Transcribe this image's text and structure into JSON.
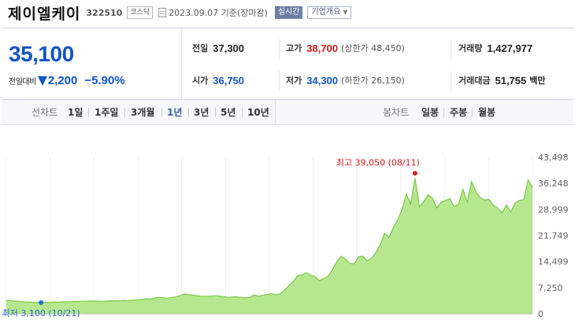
{
  "header": {
    "stock_name": "제이엘케이",
    "stock_code": "322510",
    "market": "코스닥",
    "base_date": "2023.09.07 기준(장마감)",
    "realtime_label": "실시간",
    "company_info_label": "기업개요"
  },
  "summary": {
    "current_price": "35,100",
    "change_label": "전일대비",
    "change_value": "2,200",
    "change_rate": "−5.90%",
    "prev_close_label": "전일",
    "prev_close": "37,300",
    "high_label": "고가",
    "high": "38,700",
    "upper_limit": "(상한가 48,450)",
    "volume_label": "거래량",
    "volume": "1,427,977",
    "open_label": "시가",
    "open": "36,750",
    "low_label": "저가",
    "low": "34,300",
    "lower_limit": "(하한가 26,150)",
    "amount_label": "거래대금",
    "amount": "51,755",
    "amount_unit": "백만"
  },
  "period_bar": {
    "line_label": "선차트",
    "line_options": [
      "1일",
      "1주일",
      "3개월",
      "1년",
      "3년",
      "5년",
      "10년"
    ],
    "active": "1년",
    "candle_label": "봉차트",
    "candle_options": [
      "일봉",
      "주봉",
      "월봉"
    ]
  },
  "colors": {
    "down": "#1254c6",
    "up": "#d6191f",
    "area_fill": "#a9e07f",
    "area_line": "#7cc84a"
  },
  "chart_data": {
    "type": "area",
    "period": "1년",
    "y_ticks": [
      43498,
      36248,
      28999,
      21749,
      14499,
      7250,
      0
    ],
    "ylim": [
      0,
      43498
    ],
    "grid": "vertical",
    "max_annotation": {
      "text": "최고 39,050 (08/11)",
      "value": 39050,
      "date": "08/11"
    },
    "min_annotation": {
      "text": "최저 3,100 (10/21)",
      "value": 3100,
      "date": "10/21"
    },
    "series": [
      {
        "values": [
          3700,
          3600,
          3500,
          3400,
          3300,
          3250,
          3200,
          3150,
          3100,
          3200,
          3150,
          3250,
          3200,
          3300,
          3250,
          3350,
          3400,
          3450,
          3450,
          3500,
          3550,
          3500,
          3450,
          3550,
          3600,
          3550,
          3650,
          3700,
          3650,
          3750,
          3850,
          3950,
          4150,
          4050,
          4350,
          4550,
          4450,
          4300,
          4500,
          4650,
          5050,
          5500,
          5300,
          5150,
          4950,
          4850,
          4800,
          4850,
          5000,
          4900,
          4700,
          4550,
          4650,
          4700,
          4500,
          4400,
          4550,
          5200,
          4850,
          5100,
          5350,
          5550,
          5250,
          5550,
          6600,
          7800,
          9000,
          10600,
          10800,
          11400,
          10700,
          10300,
          9200,
          9800,
          10400,
          12200,
          14500,
          16000,
          15200,
          14000,
          13900,
          15800,
          16000,
          14600,
          15500,
          17000,
          19200,
          22400,
          21200,
          23900,
          26000,
          29000,
          33200,
          30500,
          37700,
          29700,
          31200,
          33000,
          32200,
          29400,
          31000,
          31500,
          32000,
          29700,
          30500,
          34600,
          31000,
          36700,
          33900,
          32200,
          31600,
          31800,
          30100,
          29400,
          28000,
          30200,
          28300,
          30700,
          31500,
          31700,
          37200,
          35100
        ]
      }
    ]
  }
}
